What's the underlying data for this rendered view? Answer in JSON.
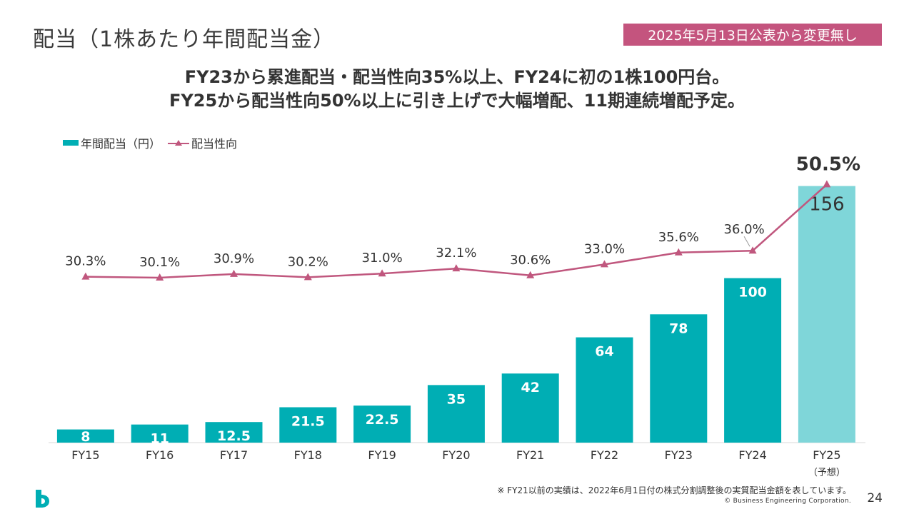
{
  "page": {
    "title": "配当（1株あたり年間配当金）",
    "badge": "2025年5月13日公表から変更無し",
    "headline_line1": "FY23から累進配当・配当性向35%以上、FY24に初の1株100円台。",
    "headline_line2": "FY25から配当性向50%以上に引き上げで大幅増配、11期連続増配予定。",
    "footnote": "※ FY21以前の実績は、2022年6月1日付の株式分割調整後の実質配当金額を表しています。",
    "copyright": "© Business Engineering Corporation.",
    "page_number": "24"
  },
  "colors": {
    "bar": "#00aeb4",
    "bar_forecast": "#7fd6d9",
    "line": "#c0577e",
    "badge": "#c4547e"
  },
  "chart_data": {
    "type": "bar",
    "categories": [
      "FY15",
      "FY16",
      "FY17",
      "FY18",
      "FY19",
      "FY20",
      "FY21",
      "FY22",
      "FY23",
      "FY24",
      "FY25"
    ],
    "category_sublabels": [
      "",
      "",
      "",
      "",
      "",
      "",
      "",
      "",
      "",
      "",
      "（予想）"
    ],
    "series": [
      {
        "name": "年間配当（円）",
        "type": "bar",
        "values": [
          8,
          11,
          12.5,
          21.5,
          22.5,
          35,
          42,
          64,
          78,
          100,
          156
        ],
        "labels": [
          "8",
          "11",
          "12.5",
          "21.5",
          "22.5",
          "35",
          "42",
          "64",
          "78",
          "100",
          "156"
        ],
        "forecast_index": 10
      },
      {
        "name": "配当性向",
        "type": "line",
        "marker": "triangle",
        "values": [
          30.3,
          30.1,
          30.9,
          30.2,
          31.0,
          32.1,
          30.6,
          33.0,
          35.6,
          36.0,
          50.5
        ],
        "labels": [
          "30.3%",
          "30.1%",
          "30.9%",
          "30.2%",
          "31.0%",
          "32.1%",
          "30.6%",
          "33.0%",
          "35.6%",
          "36.0%",
          "50.5%"
        ]
      }
    ],
    "bar_axis_range": [
      0,
      170
    ],
    "line_axis_range": [
      -6,
      54
    ],
    "axes_visible": false,
    "grid": false,
    "legend": "top-left"
  }
}
